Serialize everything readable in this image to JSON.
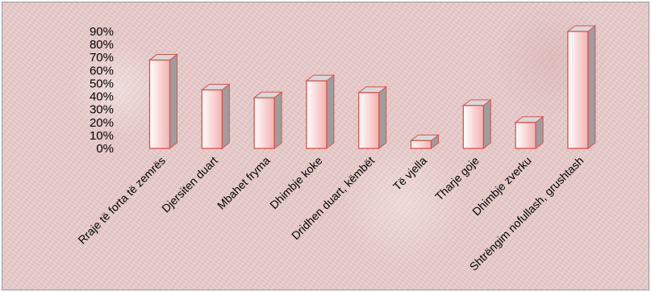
{
  "chart_data": {
    "type": "bar",
    "categories": [
      "Rraje të forta të zemrës",
      "Djersiten duart",
      "Mbahet fryma",
      "Dhimbje koke",
      "Dridhen duart, këmbët",
      "Të vjella",
      "Tharje goje",
      "Dhimbje zverku",
      "Shtrëngim nofullash, grushtash"
    ],
    "values": [
      68,
      45,
      39,
      52,
      43,
      6,
      33,
      20,
      90
    ],
    "yticks": [
      "0%",
      "10%",
      "20%",
      "30%",
      "40%",
      "50%",
      "60%",
      "70%",
      "80%",
      "90%"
    ],
    "ylim": [
      0,
      90
    ],
    "grid": false,
    "legend": "none",
    "colors": {
      "bar_front_top": "#ffffff",
      "bar_front_bottom": "#f39a9a",
      "bar_side": "#9e9e9e",
      "bar_top": "#d8d8d8",
      "bar_edge": "#d9534f"
    }
  }
}
